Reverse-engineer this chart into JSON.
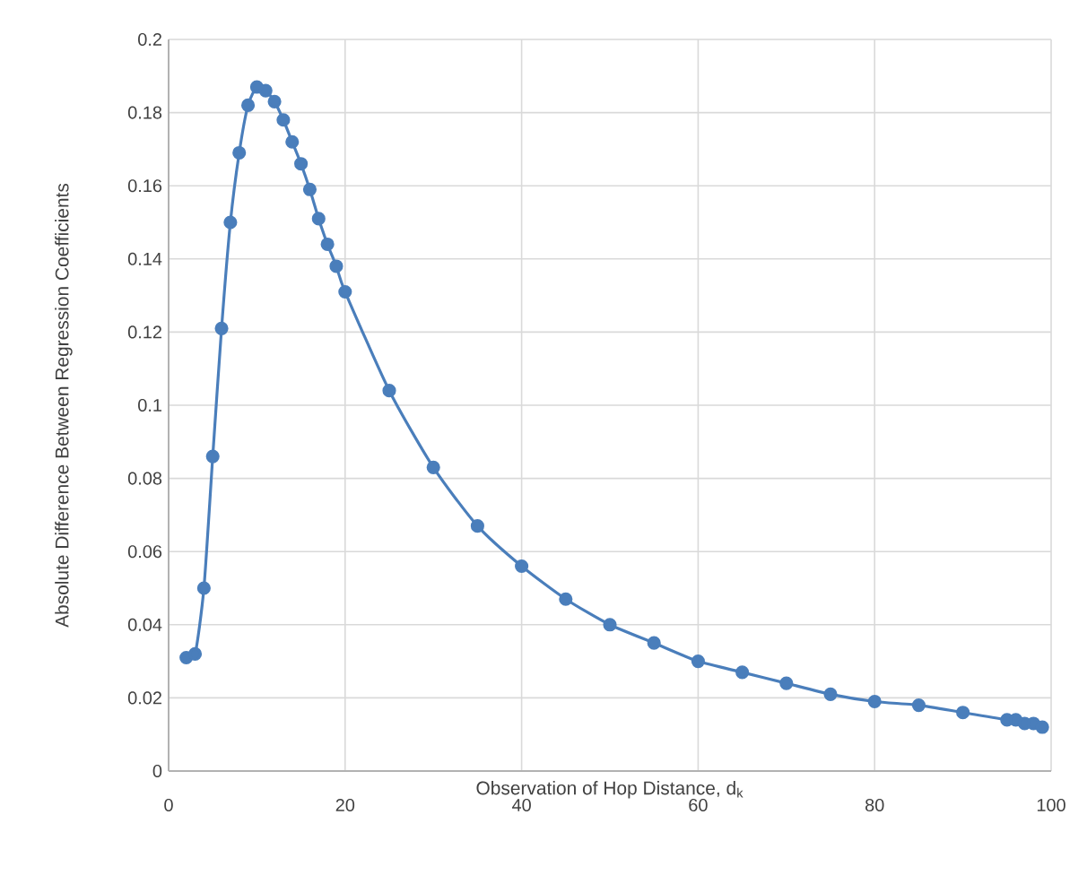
{
  "chart_data": {
    "type": "line",
    "xlabel": "Observation of Hop Distance, d$_{k}$",
    "ylabel": "Absolute Difference Between Regression Coefficients",
    "x": [
      2,
      3,
      4,
      5,
      6,
      7,
      8,
      9,
      10,
      11,
      12,
      13,
      14,
      15,
      16,
      17,
      18,
      19,
      20,
      25,
      30,
      35,
      40,
      45,
      50,
      55,
      60,
      65,
      70,
      75,
      80,
      85,
      90,
      95,
      96,
      97,
      98,
      99
    ],
    "series": [
      {
        "color": "#4a7ebb",
        "values": [
          0.031,
          0.032,
          0.05,
          0.086,
          0.121,
          0.15,
          0.169,
          0.182,
          0.187,
          0.186,
          0.183,
          0.178,
          0.172,
          0.166,
          0.159,
          0.151,
          0.144,
          0.138,
          0.131,
          0.104,
          0.083,
          0.067,
          0.056,
          0.047,
          0.04,
          0.035,
          0.03,
          0.027,
          0.024,
          0.021,
          0.019,
          0.018,
          0.016,
          0.014,
          0.014,
          0.013,
          0.013,
          0.012
        ]
      }
    ],
    "xlim": [
      0,
      100
    ],
    "xticks": [
      0,
      20,
      40,
      60,
      80,
      100
    ],
    "ylim": [
      0,
      0.2
    ],
    "yticks": [
      0,
      0.02,
      0.04,
      0.06,
      0.08,
      0.1,
      0.12,
      0.14,
      0.16,
      0.18,
      0.2
    ],
    "grid": true,
    "marker": "circle",
    "line_style": "solid"
  }
}
